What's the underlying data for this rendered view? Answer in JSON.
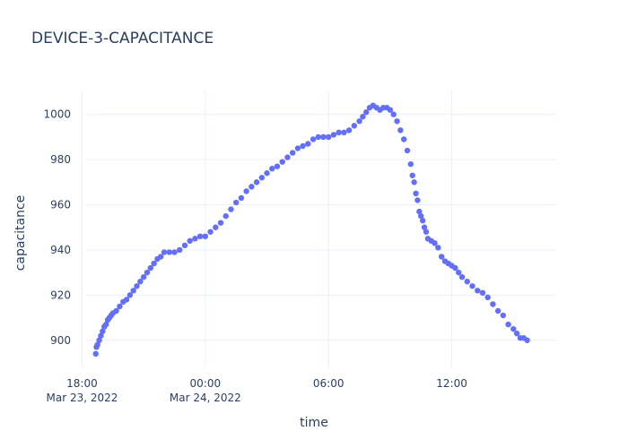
{
  "chart_data": {
    "type": "scatter",
    "title": "DEVICE-3-CAPACITANCE",
    "xlabel": "time",
    "ylabel": "capacitance",
    "x_range": [
      "2022-03-23T17:30",
      "2022-03-24T17:05"
    ],
    "ylim": [
      888,
      1011
    ],
    "x_ticks": [
      {
        "value": "2022-03-23T18:00",
        "label": "18:00",
        "sublabel": "Mar 23, 2022"
      },
      {
        "value": "2022-03-24T00:00",
        "label": "00:00",
        "sublabel": "Mar 24, 2022"
      },
      {
        "value": "2022-03-24T06:00",
        "label": "06:00",
        "sublabel": ""
      },
      {
        "value": "2022-03-24T12:00",
        "label": "12:00",
        "sublabel": ""
      }
    ],
    "y_ticks": [
      900,
      920,
      940,
      960,
      980,
      1000
    ],
    "grid": true,
    "marker_color": "#636efa",
    "series": [
      {
        "points": [
          [
            "2022-03-23T18:40",
            894
          ],
          [
            "2022-03-23T18:42",
            897
          ],
          [
            "2022-03-23T18:45",
            898
          ],
          [
            "2022-03-23T18:50",
            900
          ],
          [
            "2022-03-23T18:55",
            902
          ],
          [
            "2022-03-23T19:00",
            904
          ],
          [
            "2022-03-23T19:05",
            906
          ],
          [
            "2022-03-23T19:10",
            907
          ],
          [
            "2022-03-23T19:15",
            909
          ],
          [
            "2022-03-23T19:20",
            910
          ],
          [
            "2022-03-23T19:25",
            911
          ],
          [
            "2022-03-23T19:30",
            912
          ],
          [
            "2022-03-23T19:40",
            913
          ],
          [
            "2022-03-23T19:50",
            915
          ],
          [
            "2022-03-23T20:00",
            917
          ],
          [
            "2022-03-23T20:10",
            918
          ],
          [
            "2022-03-23T20:20",
            920
          ],
          [
            "2022-03-23T20:30",
            922
          ],
          [
            "2022-03-23T20:40",
            924
          ],
          [
            "2022-03-23T20:50",
            926
          ],
          [
            "2022-03-23T21:00",
            928
          ],
          [
            "2022-03-23T21:10",
            930
          ],
          [
            "2022-03-23T21:20",
            932
          ],
          [
            "2022-03-23T21:30",
            934
          ],
          [
            "2022-03-23T21:40",
            936
          ],
          [
            "2022-03-23T21:50",
            937
          ],
          [
            "2022-03-23T22:00",
            939
          ],
          [
            "2022-03-23T22:15",
            939
          ],
          [
            "2022-03-23T22:30",
            939
          ],
          [
            "2022-03-23T22:45",
            940
          ],
          [
            "2022-03-23T23:00",
            942
          ],
          [
            "2022-03-23T23:15",
            944
          ],
          [
            "2022-03-23T23:30",
            945
          ],
          [
            "2022-03-23T23:45",
            946
          ],
          [
            "2022-03-24T00:00",
            946
          ],
          [
            "2022-03-24T00:15",
            948
          ],
          [
            "2022-03-24T00:30",
            950
          ],
          [
            "2022-03-24T00:45",
            952
          ],
          [
            "2022-03-24T01:00",
            955
          ],
          [
            "2022-03-24T01:15",
            958
          ],
          [
            "2022-03-24T01:30",
            961
          ],
          [
            "2022-03-24T01:45",
            963
          ],
          [
            "2022-03-24T02:00",
            966
          ],
          [
            "2022-03-24T02:15",
            968
          ],
          [
            "2022-03-24T02:30",
            970
          ],
          [
            "2022-03-24T02:45",
            972
          ],
          [
            "2022-03-24T03:00",
            974
          ],
          [
            "2022-03-24T03:15",
            976
          ],
          [
            "2022-03-24T03:30",
            977
          ],
          [
            "2022-03-24T03:45",
            979
          ],
          [
            "2022-03-24T04:00",
            981
          ],
          [
            "2022-03-24T04:15",
            983
          ],
          [
            "2022-03-24T04:30",
            985
          ],
          [
            "2022-03-24T04:45",
            986
          ],
          [
            "2022-03-24T05:00",
            987
          ],
          [
            "2022-03-24T05:15",
            989
          ],
          [
            "2022-03-24T05:30",
            990
          ],
          [
            "2022-03-24T05:45",
            990
          ],
          [
            "2022-03-24T06:00",
            990
          ],
          [
            "2022-03-24T06:15",
            991
          ],
          [
            "2022-03-24T06:30",
            992
          ],
          [
            "2022-03-24T06:45",
            992
          ],
          [
            "2022-03-24T07:00",
            993
          ],
          [
            "2022-03-24T07:15",
            995
          ],
          [
            "2022-03-24T07:30",
            997
          ],
          [
            "2022-03-24T07:40",
            999
          ],
          [
            "2022-03-24T07:50",
            1001
          ],
          [
            "2022-03-24T08:00",
            1003
          ],
          [
            "2022-03-24T08:10",
            1004
          ],
          [
            "2022-03-24T08:20",
            1003
          ],
          [
            "2022-03-24T08:30",
            1002
          ],
          [
            "2022-03-24T08:40",
            1003
          ],
          [
            "2022-03-24T08:50",
            1003
          ],
          [
            "2022-03-24T09:00",
            1002
          ],
          [
            "2022-03-24T09:10",
            1000
          ],
          [
            "2022-03-24T09:20",
            997
          ],
          [
            "2022-03-24T09:30",
            993
          ],
          [
            "2022-03-24T09:40",
            989
          ],
          [
            "2022-03-24T09:50",
            984
          ],
          [
            "2022-03-24T10:00",
            978
          ],
          [
            "2022-03-24T10:05",
            973
          ],
          [
            "2022-03-24T10:10",
            970
          ],
          [
            "2022-03-24T10:15",
            965
          ],
          [
            "2022-03-24T10:20",
            962
          ],
          [
            "2022-03-24T10:25",
            957
          ],
          [
            "2022-03-24T10:30",
            955
          ],
          [
            "2022-03-24T10:35",
            953
          ],
          [
            "2022-03-24T10:40",
            950
          ],
          [
            "2022-03-24T10:45",
            948
          ],
          [
            "2022-03-24T10:50",
            945
          ],
          [
            "2022-03-24T11:00",
            944
          ],
          [
            "2022-03-24T11:10",
            943
          ],
          [
            "2022-03-24T11:20",
            941
          ],
          [
            "2022-03-24T11:30",
            937
          ],
          [
            "2022-03-24T11:40",
            935
          ],
          [
            "2022-03-24T11:50",
            934
          ],
          [
            "2022-03-24T12:00",
            933
          ],
          [
            "2022-03-24T12:10",
            932
          ],
          [
            "2022-03-24T12:20",
            930
          ],
          [
            "2022-03-24T12:30",
            928
          ],
          [
            "2022-03-24T12:45",
            926
          ],
          [
            "2022-03-24T13:00",
            924
          ],
          [
            "2022-03-24T13:15",
            922
          ],
          [
            "2022-03-24T13:30",
            921
          ],
          [
            "2022-03-24T13:45",
            919
          ],
          [
            "2022-03-24T14:00",
            916
          ],
          [
            "2022-03-24T14:15",
            913
          ],
          [
            "2022-03-24T14:30",
            911
          ],
          [
            "2022-03-24T14:45",
            907
          ],
          [
            "2022-03-24T15:00",
            905
          ],
          [
            "2022-03-24T15:10",
            903
          ],
          [
            "2022-03-24T15:20",
            901
          ],
          [
            "2022-03-24T15:30",
            901
          ],
          [
            "2022-03-24T15:40",
            900
          ]
        ]
      }
    ]
  }
}
